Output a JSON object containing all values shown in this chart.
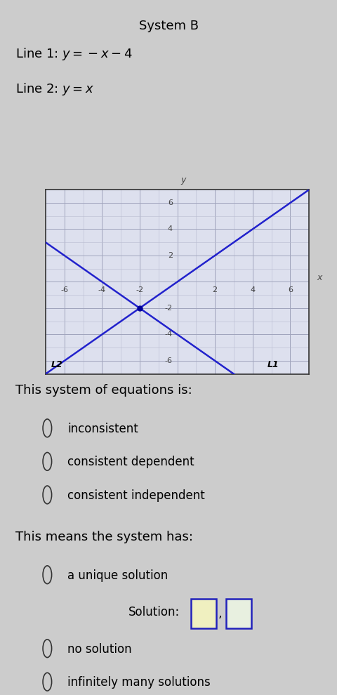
{
  "title": "System B",
  "line1_label": "Line 1: $y=-x-4$",
  "line2_label": "Line 2: $y=x$",
  "bg_color": "#cccccc",
  "plot_bg_color": "#dde0ee",
  "plot_border_color": "#333333",
  "grid_color_minor": "#b8bcd0",
  "grid_color_major": "#a0a4bc",
  "line1_color": "#2222cc",
  "line2_color": "#2222cc",
  "intersection_color": "#000099",
  "axis_range": [
    -7,
    7
  ],
  "xlabel": "x",
  "ylabel": "y",
  "L1_label": "L1",
  "L2_label": "L2",
  "question1": "This system of equations is:",
  "options1": [
    "inconsistent",
    "consistent dependent",
    "consistent independent"
  ],
  "question2": "This means the system has:",
  "options2": [
    "a unique solution",
    "no solution",
    "infinitely many solutions"
  ],
  "solution_label": "Solution:",
  "font_size_title": 13,
  "font_size_line_label": 13,
  "font_size_text": 13,
  "font_size_option": 12,
  "font_size_axis_tick": 8,
  "font_size_axis_label": 9
}
